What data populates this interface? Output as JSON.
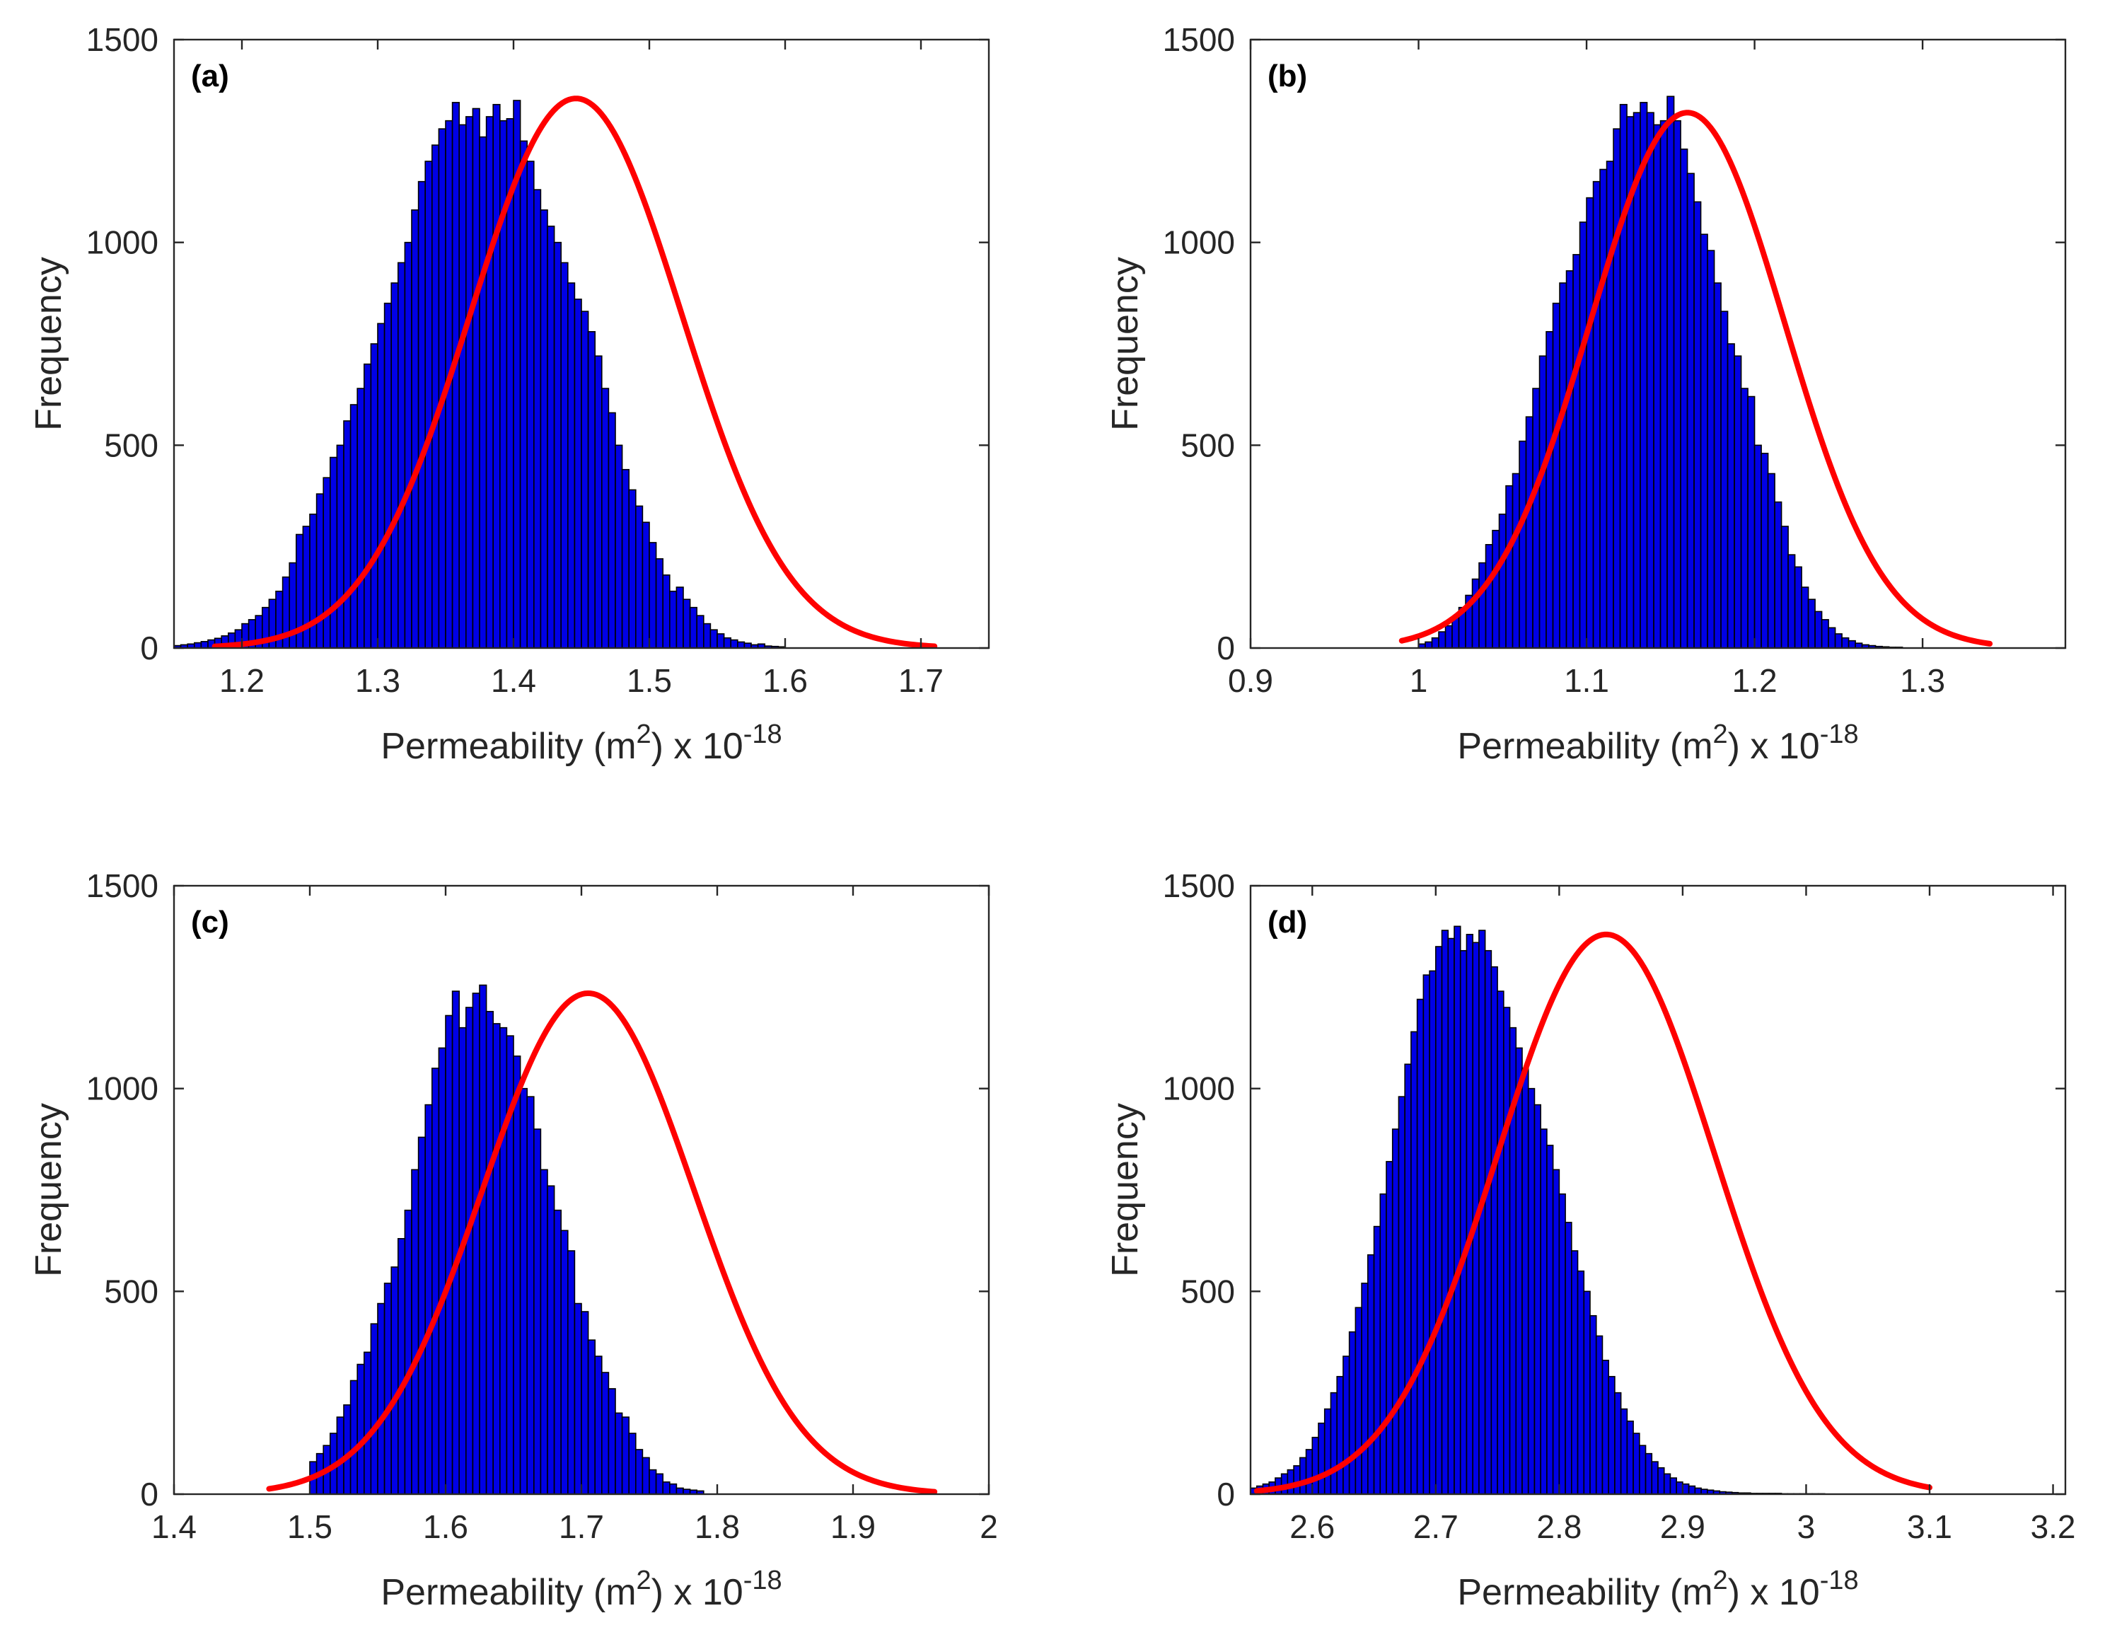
{
  "colors": {
    "bar_fill": "#0000e6",
    "bar_edge": "#000000",
    "fit_line": "#ff0000",
    "axis": "#262626"
  },
  "chart_data": [
    {
      "type": "bar",
      "panel": "(a)",
      "xlabel": {
        "main": "Permeability (m",
        "sup1": "2",
        "mid": ") x 10",
        "sup2": "-18"
      },
      "ylabel": "Frequency",
      "xlim": [
        1.15,
        1.75
      ],
      "ylim": [
        0,
        1500
      ],
      "xticks": [
        "1.2",
        "1.3",
        "1.4",
        "1.5",
        "1.6",
        "1.7"
      ],
      "yticks": [
        "0",
        "500",
        "1000",
        "1500"
      ],
      "histogram": {
        "start": 1.15,
        "bin_width": 0.005,
        "counts": [
          6,
          8,
          10,
          13,
          16,
          20,
          24,
          30,
          37,
          45,
          60,
          70,
          80,
          100,
          120,
          140,
          175,
          210,
          280,
          300,
          330,
          380,
          420,
          470,
          500,
          560,
          600,
          640,
          700,
          750,
          800,
          850,
          900,
          950,
          1000,
          1080,
          1150,
          1200,
          1240,
          1280,
          1300,
          1345,
          1290,
          1310,
          1330,
          1260,
          1310,
          1340,
          1300,
          1305,
          1350,
          1250,
          1200,
          1130,
          1080,
          1040,
          1000,
          950,
          900,
          860,
          830,
          780,
          720,
          640,
          580,
          500,
          440,
          390,
          350,
          310,
          260,
          220,
          180,
          140,
          150,
          120,
          100,
          80,
          60,
          45,
          35,
          25,
          20,
          15,
          12,
          8,
          10,
          5,
          4,
          3
        ],
        "note": "approximate"
      },
      "fit": {
        "mean": 1.446,
        "sd": 0.078,
        "peak": 1355,
        "xrange": [
          1.18,
          1.71
        ]
      }
    },
    {
      "type": "bar",
      "panel": "(b)",
      "xlabel": {
        "main": "Permeability (m",
        "sup1": "2",
        "mid": ") x 10",
        "sup2": "-18"
      },
      "ylabel": "Frequency",
      "xlim": [
        0.9,
        1.385
      ],
      "ylim": [
        0,
        1500
      ],
      "xticks": [
        "0.9",
        "1",
        "1.1",
        "1.2",
        "1.3"
      ],
      "yticks": [
        "0",
        "500",
        "1000",
        "1500"
      ],
      "histogram": {
        "start": 1.0,
        "bin_width": 0.004,
        "counts": [
          10,
          15,
          25,
          40,
          55,
          75,
          100,
          130,
          170,
          210,
          255,
          290,
          330,
          400,
          430,
          510,
          570,
          640,
          720,
          780,
          850,
          900,
          930,
          970,
          1050,
          1110,
          1150,
          1180,
          1200,
          1280,
          1340,
          1310,
          1320,
          1345,
          1320,
          1290,
          1300,
          1360,
          1300,
          1230,
          1170,
          1100,
          1020,
          980,
          900,
          830,
          750,
          720,
          640,
          620,
          500,
          480,
          430,
          360,
          300,
          230,
          200,
          150,
          120,
          90,
          70,
          50,
          35,
          25,
          18,
          12,
          8,
          6,
          4,
          3,
          2,
          2
        ],
        "note": "approximate"
      },
      "fit": {
        "mean": 1.16,
        "sd": 0.058,
        "peak": 1320,
        "xrange": [
          0.99,
          1.34
        ]
      }
    },
    {
      "type": "bar",
      "panel": "(c)",
      "xlabel": {
        "main": "Permeability (m",
        "sup1": "2",
        "mid": ") x 10",
        "sup2": "-18"
      },
      "ylabel": "Frequency",
      "xlim": [
        1.4,
        2.0
      ],
      "ylim": [
        0,
        1500
      ],
      "xticks": [
        "1.4",
        "1.5",
        "1.6",
        "1.7",
        "1.8",
        "1.9",
        "2"
      ],
      "yticks": [
        "0",
        "500",
        "1000",
        "1500"
      ],
      "histogram": {
        "start": 1.5,
        "bin_width": 0.005,
        "counts": [
          80,
          100,
          120,
          150,
          190,
          220,
          280,
          320,
          350,
          420,
          470,
          520,
          560,
          630,
          700,
          800,
          880,
          960,
          1050,
          1100,
          1180,
          1240,
          1150,
          1200,
          1235,
          1255,
          1190,
          1160,
          1150,
          1130,
          1080,
          1000,
          980,
          900,
          800,
          760,
          700,
          650,
          600,
          470,
          450,
          380,
          340,
          300,
          260,
          200,
          190,
          150,
          110,
          90,
          60,
          50,
          30,
          25,
          15,
          12,
          10,
          8
        ],
        "note": "approximate"
      },
      "fit": {
        "mean": 1.705,
        "sd": 0.078,
        "peak": 1235,
        "xrange": [
          1.47,
          1.96
        ]
      }
    },
    {
      "type": "bar",
      "panel": "(d)",
      "xlabel": {
        "main": "Permeability (m",
        "sup1": "2",
        "mid": ") x 10",
        "sup2": "-18"
      },
      "ylabel": "Frequency",
      "xlim": [
        2.55,
        3.21
      ],
      "ylim": [
        0,
        1500
      ],
      "xticks": [
        "2.6",
        "2.7",
        "2.8",
        "2.9",
        "3",
        "3.1",
        "3.2"
      ],
      "yticks": [
        "0",
        "500",
        "1000",
        "1500"
      ],
      "histogram": {
        "start": 2.55,
        "bin_width": 0.005,
        "counts": [
          15,
          20,
          25,
          30,
          40,
          50,
          60,
          70,
          90,
          110,
          140,
          175,
          210,
          250,
          290,
          340,
          400,
          460,
          520,
          590,
          660,
          740,
          820,
          900,
          980,
          1060,
          1140,
          1220,
          1280,
          1290,
          1350,
          1390,
          1370,
          1400,
          1340,
          1380,
          1360,
          1390,
          1340,
          1300,
          1240,
          1200,
          1150,
          1100,
          1050,
          1000,
          960,
          900,
          860,
          800,
          740,
          670,
          600,
          550,
          500,
          440,
          390,
          330,
          290,
          250,
          210,
          180,
          150,
          120,
          100,
          80,
          65,
          50,
          40,
          30,
          25,
          20,
          15,
          12,
          10,
          8,
          6,
          5,
          4,
          3,
          3,
          2,
          2,
          2,
          2,
          2,
          1,
          1,
          1,
          1,
          1,
          1,
          1
        ],
        "note": "approximate"
      },
      "fit": {
        "mean": 2.838,
        "sd": 0.088,
        "peak": 1380,
        "xrange": [
          2.555,
          3.1
        ]
      }
    }
  ]
}
